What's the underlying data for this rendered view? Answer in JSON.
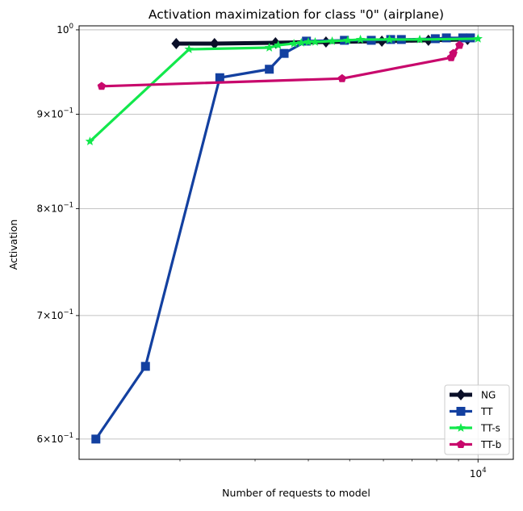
{
  "chart_data": {
    "type": "line",
    "title": "Activation maximization for class \"0\" (airplane)",
    "xlabel": "Number of requests to model",
    "ylabel": "Activation",
    "x_scale": "log",
    "y_scale": "log",
    "xlim": [
      1160,
      12100
    ],
    "ylim": [
      0.585,
      1.005
    ],
    "x_ticks": [
      {
        "value": 10000,
        "base": "10",
        "exp": "4"
      }
    ],
    "y_ticks": [
      {
        "value": 1.0,
        "mantissa": "",
        "base": "10",
        "exp": "0"
      },
      {
        "value": 0.9,
        "mantissa": "9",
        "base": "10",
        "exp": "−1"
      },
      {
        "value": 0.8,
        "mantissa": "8",
        "base": "10",
        "exp": "−1"
      },
      {
        "value": 0.7,
        "mantissa": "7",
        "base": "10",
        "exp": "−1"
      },
      {
        "value": 0.6,
        "mantissa": "6",
        "base": "10",
        "exp": "−1"
      }
    ],
    "x_minor_ticks": [
      2000,
      3000,
      4000,
      5000,
      6000,
      7000,
      8000,
      9000
    ],
    "grid": "major",
    "legend": {
      "placement": "lower-right"
    },
    "series": [
      {
        "name": "NG",
        "color": "#0a0f28",
        "marker": "diamond",
        "points": [
          [
            1960,
            0.983
          ],
          [
            2410,
            0.983
          ],
          [
            3350,
            0.984
          ],
          [
            4400,
            0.985
          ],
          [
            5950,
            0.986
          ],
          [
            7650,
            0.987
          ],
          [
            9450,
            0.988
          ]
        ]
      },
      {
        "name": "TT",
        "color": "#1340a0",
        "marker": "square",
        "points": [
          [
            1270,
            0.6
          ],
          [
            1660,
            0.657
          ],
          [
            2480,
            0.942
          ],
          [
            3240,
            0.952
          ],
          [
            3510,
            0.971
          ],
          [
            3960,
            0.986
          ],
          [
            4860,
            0.987
          ],
          [
            5620,
            0.987
          ],
          [
            6240,
            0.988
          ],
          [
            6610,
            0.988
          ],
          [
            7940,
            0.989
          ],
          [
            8430,
            0.99
          ],
          [
            9210,
            0.99
          ],
          [
            9600,
            0.99
          ]
        ]
      },
      {
        "name": "TT-s",
        "color": "#12e84c",
        "marker": "star",
        "points": [
          [
            1230,
            0.87
          ],
          [
            2100,
            0.976
          ],
          [
            3240,
            0.978
          ],
          [
            3400,
            0.981
          ],
          [
            3700,
            0.983
          ],
          [
            3850,
            0.984
          ],
          [
            4000,
            0.985
          ],
          [
            4150,
            0.985
          ],
          [
            4550,
            0.986
          ],
          [
            4950,
            0.987
          ],
          [
            5300,
            0.988
          ],
          [
            6200,
            0.988
          ],
          [
            7300,
            0.988
          ],
          [
            10000,
            0.989
          ]
        ]
      },
      {
        "name": "TT-b",
        "color": "#c8086c",
        "marker": "pentagon",
        "points": [
          [
            1310,
            0.932
          ],
          [
            4800,
            0.941
          ],
          [
            8650,
            0.966
          ],
          [
            8750,
            0.971
          ],
          [
            9050,
            0.981
          ]
        ]
      }
    ]
  }
}
